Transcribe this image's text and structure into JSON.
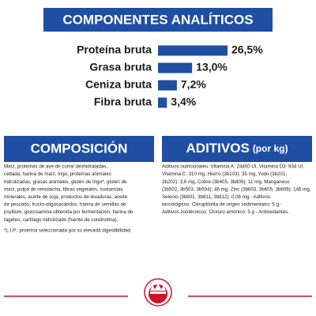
{
  "chart_data": {
    "type": "bar",
    "title": "COMPONENTES ANALÍTICOS",
    "categories": [
      "Proteína bruta",
      "Grasa bruta",
      "Ceniza bruta",
      "Fibra bruta"
    ],
    "values": [
      26.5,
      13.0,
      7.2,
      3.4
    ],
    "value_labels": [
      "26,5%",
      "13,0%",
      "7,2%",
      "3,4%"
    ],
    "color": "#1f4ea3"
  },
  "composition": {
    "title": "COMPOSICIÓN",
    "lines": [
      "Maíz, proteínas de ave de corral deshidratadas,",
      "cebada, harina de maíz, trigo, proteínas animales",
      "hidrolizadas, grasas animales, gluten de trigo*, gluten de",
      "maíz, pulpa de remolacha, fibras vegetales, sustancias",
      "minerales, aceite de soja, productos de levaduras, aceite",
      "de pescado, fructo-oligosacáridos, harina de semillas de",
      "psyllium, glucosamina obtenida por fermentación, harina de",
      "tagetes, cartílago hidrolizado (fuente de condroitina)."
    ],
    "footnote": "*L.I.P.: proteína seleccionada por su elevada digestibilidad."
  },
  "additives": {
    "title": "ADITIVOS",
    "subtitle": "(por kg)",
    "lines": [
      "Aditivos nutricionales: Vitamina A: 24400 UI, Vitamina D3: 934 UI,",
      "Vitamina C: 310 mg, Hierro (3b103): 35 mg, Yodo (3b201,",
      "3b202): 3,6 mg, Cobre (3b405, 3b406): 11 mg, Manganeso",
      "(3b502, 3b503, 3b504): 46 mg, Zinc (3b603, 3b605, 3b606): 146 mg,",
      "Selenio (3b801, 3b811, 3b812): 0,06 mg - Aditivos",
      "tecnológicos: Clinoptilolita de origen sedimentario: 5 g -",
      "Aditivos zootécnicos: Cloruro amónico: 5 g - Antioxidantes."
    ]
  }
}
